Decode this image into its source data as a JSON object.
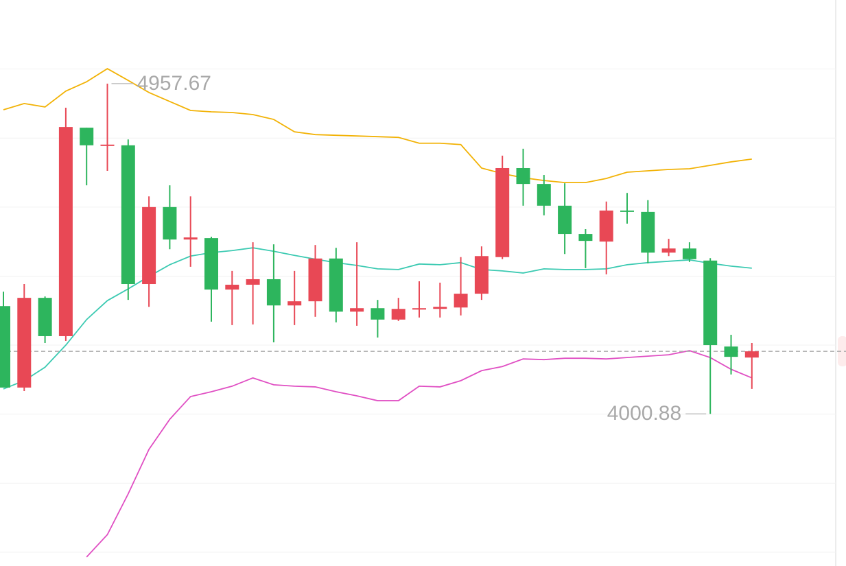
{
  "chart_data": {
    "type": "candlestick",
    "ylim": [
      3560,
      5200
    ],
    "yticks": [
      3600,
      3800,
      4000,
      4200,
      4400,
      4600,
      4800,
      5000
    ],
    "grid": true,
    "up_color": "#e84855",
    "down_color": "#2db55d",
    "candles": {
      "open": [
        4313,
        4077,
        4337,
        4226,
        4830,
        4777,
        4779,
        4377,
        4600,
        4506,
        4510,
        4361,
        4375,
        4391,
        4315,
        4327,
        4451,
        4297,
        4307,
        4274,
        4303,
        4305,
        4309,
        4349,
        4455,
        4713,
        4667,
        4604,
        4522,
        4500,
        4590,
        4586,
        4468,
        4480,
        4445,
        4196,
        4164
      ],
      "high": [
        4355,
        4377,
        4341,
        4888,
        4830,
        4957.67,
        4796,
        4631,
        4663,
        4631,
        4514,
        4415,
        4498,
        4492,
        4415,
        4490,
        4482,
        4498,
        4331,
        4337,
        4385,
        4381,
        4455,
        4486,
        4749,
        4769,
        4693,
        4669,
        4536,
        4616,
        4641,
        4620,
        4508,
        4498,
        4452,
        4230,
        4206
      ],
      "low": [
        4077,
        4067,
        4206,
        4212,
        4663,
        4705,
        4331,
        4311,
        4478,
        4427,
        4268,
        4258,
        4260,
        4208,
        4258,
        4282,
        4266,
        4256,
        4222,
        4270,
        4280,
        4280,
        4286,
        4331,
        4449,
        4604,
        4576,
        4464,
        4423,
        4405,
        4552,
        4437,
        4458,
        4441,
        4000.88,
        4115,
        4073
      ],
      "close": [
        4077,
        4337,
        4226,
        4832,
        4779,
        4781,
        4377,
        4600,
        4506,
        4512,
        4361,
        4375,
        4391,
        4315,
        4327,
        4451,
        4297,
        4307,
        4274,
        4305,
        4307,
        4311,
        4349,
        4458,
        4713,
        4667,
        4604,
        4522,
        4502,
        4590,
        4586,
        4468,
        4480,
        4449,
        4200,
        4166,
        4182
      ]
    },
    "bands": [
      {
        "color": "#f2b205",
        "values": [
          4882,
          4900,
          4890,
          4936,
          4963,
          5001,
          4967,
          4932,
          4906,
          4880,
          4876,
          4874,
          4868,
          4854,
          4818,
          4810,
          4808,
          4806,
          4804,
          4802,
          4785,
          4785,
          4781,
          4713,
          4697,
          4685,
          4677,
          4671,
          4671,
          4683,
          4701,
          4705,
          4709,
          4711,
          4721,
          4731,
          4739
        ]
      },
      {
        "color": "#3ccab2",
        "values": [
          4073,
          4097,
          4136,
          4200,
          4274,
          4329,
          4363,
          4399,
          4433,
          4458,
          4468,
          4474,
          4482,
          4472,
          4460,
          4449,
          4439,
          4431,
          4421,
          4419,
          4435,
          4433,
          4439,
          4419,
          4415,
          4409,
          4421,
          4419,
          4419,
          4421,
          4433,
          4439,
          4443,
          4447,
          4437,
          4429,
          4423
        ]
      },
      {
        "color": "#e04fc3",
        "values": [
          null,
          null,
          null,
          null,
          3586,
          3651,
          3769,
          3898,
          3985,
          4051,
          4065,
          4081,
          4105,
          4085,
          4081,
          4079,
          4065,
          4053,
          4039,
          4039,
          4081,
          4079,
          4097,
          4126,
          4138,
          4160,
          4158,
          4162,
          4162,
          4160,
          4164,
          4168,
          4172,
          4184,
          4164,
          4130,
          4105
        ]
      }
    ],
    "max_label": "4957.67",
    "min_label": "4000.88"
  }
}
